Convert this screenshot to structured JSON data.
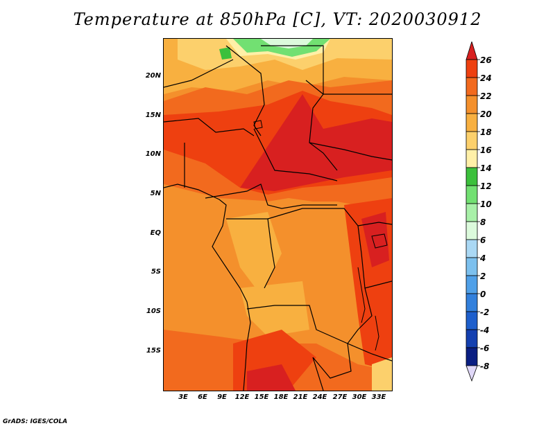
{
  "title": "Temperature at 850hPa [C], VT: 2020030912",
  "credit": "GrADS: IGES/COLA",
  "lat_labels": [
    "20N",
    "15N",
    "10N",
    "5N",
    "EQ",
    "5S",
    "10S",
    "15S"
  ],
  "lon_labels": [
    "3E",
    "6E",
    "9E",
    "12E",
    "15E",
    "18E",
    "21E",
    "24E",
    "27E",
    "30E",
    "33E"
  ],
  "colorbar": {
    "labels": [
      "26",
      "24",
      "22",
      "20",
      "18",
      "16",
      "14",
      "12",
      "10",
      "8",
      "6",
      "4",
      "2",
      "0",
      "-2",
      "-4",
      "-6",
      "-8"
    ],
    "colors": [
      "#d82020",
      "#ee4010",
      "#f26a1e",
      "#f4902c",
      "#f8b040",
      "#fcd06c",
      "#fff0a8",
      "#3cc03c",
      "#72e072",
      "#a8f0a8",
      "#dcfadc",
      "#aad8f4",
      "#7cc0ee",
      "#50a0e8",
      "#3280dc",
      "#1e5fcc",
      "#1440b0",
      "#0a1e82",
      "#e0d8f8"
    ]
  }
}
